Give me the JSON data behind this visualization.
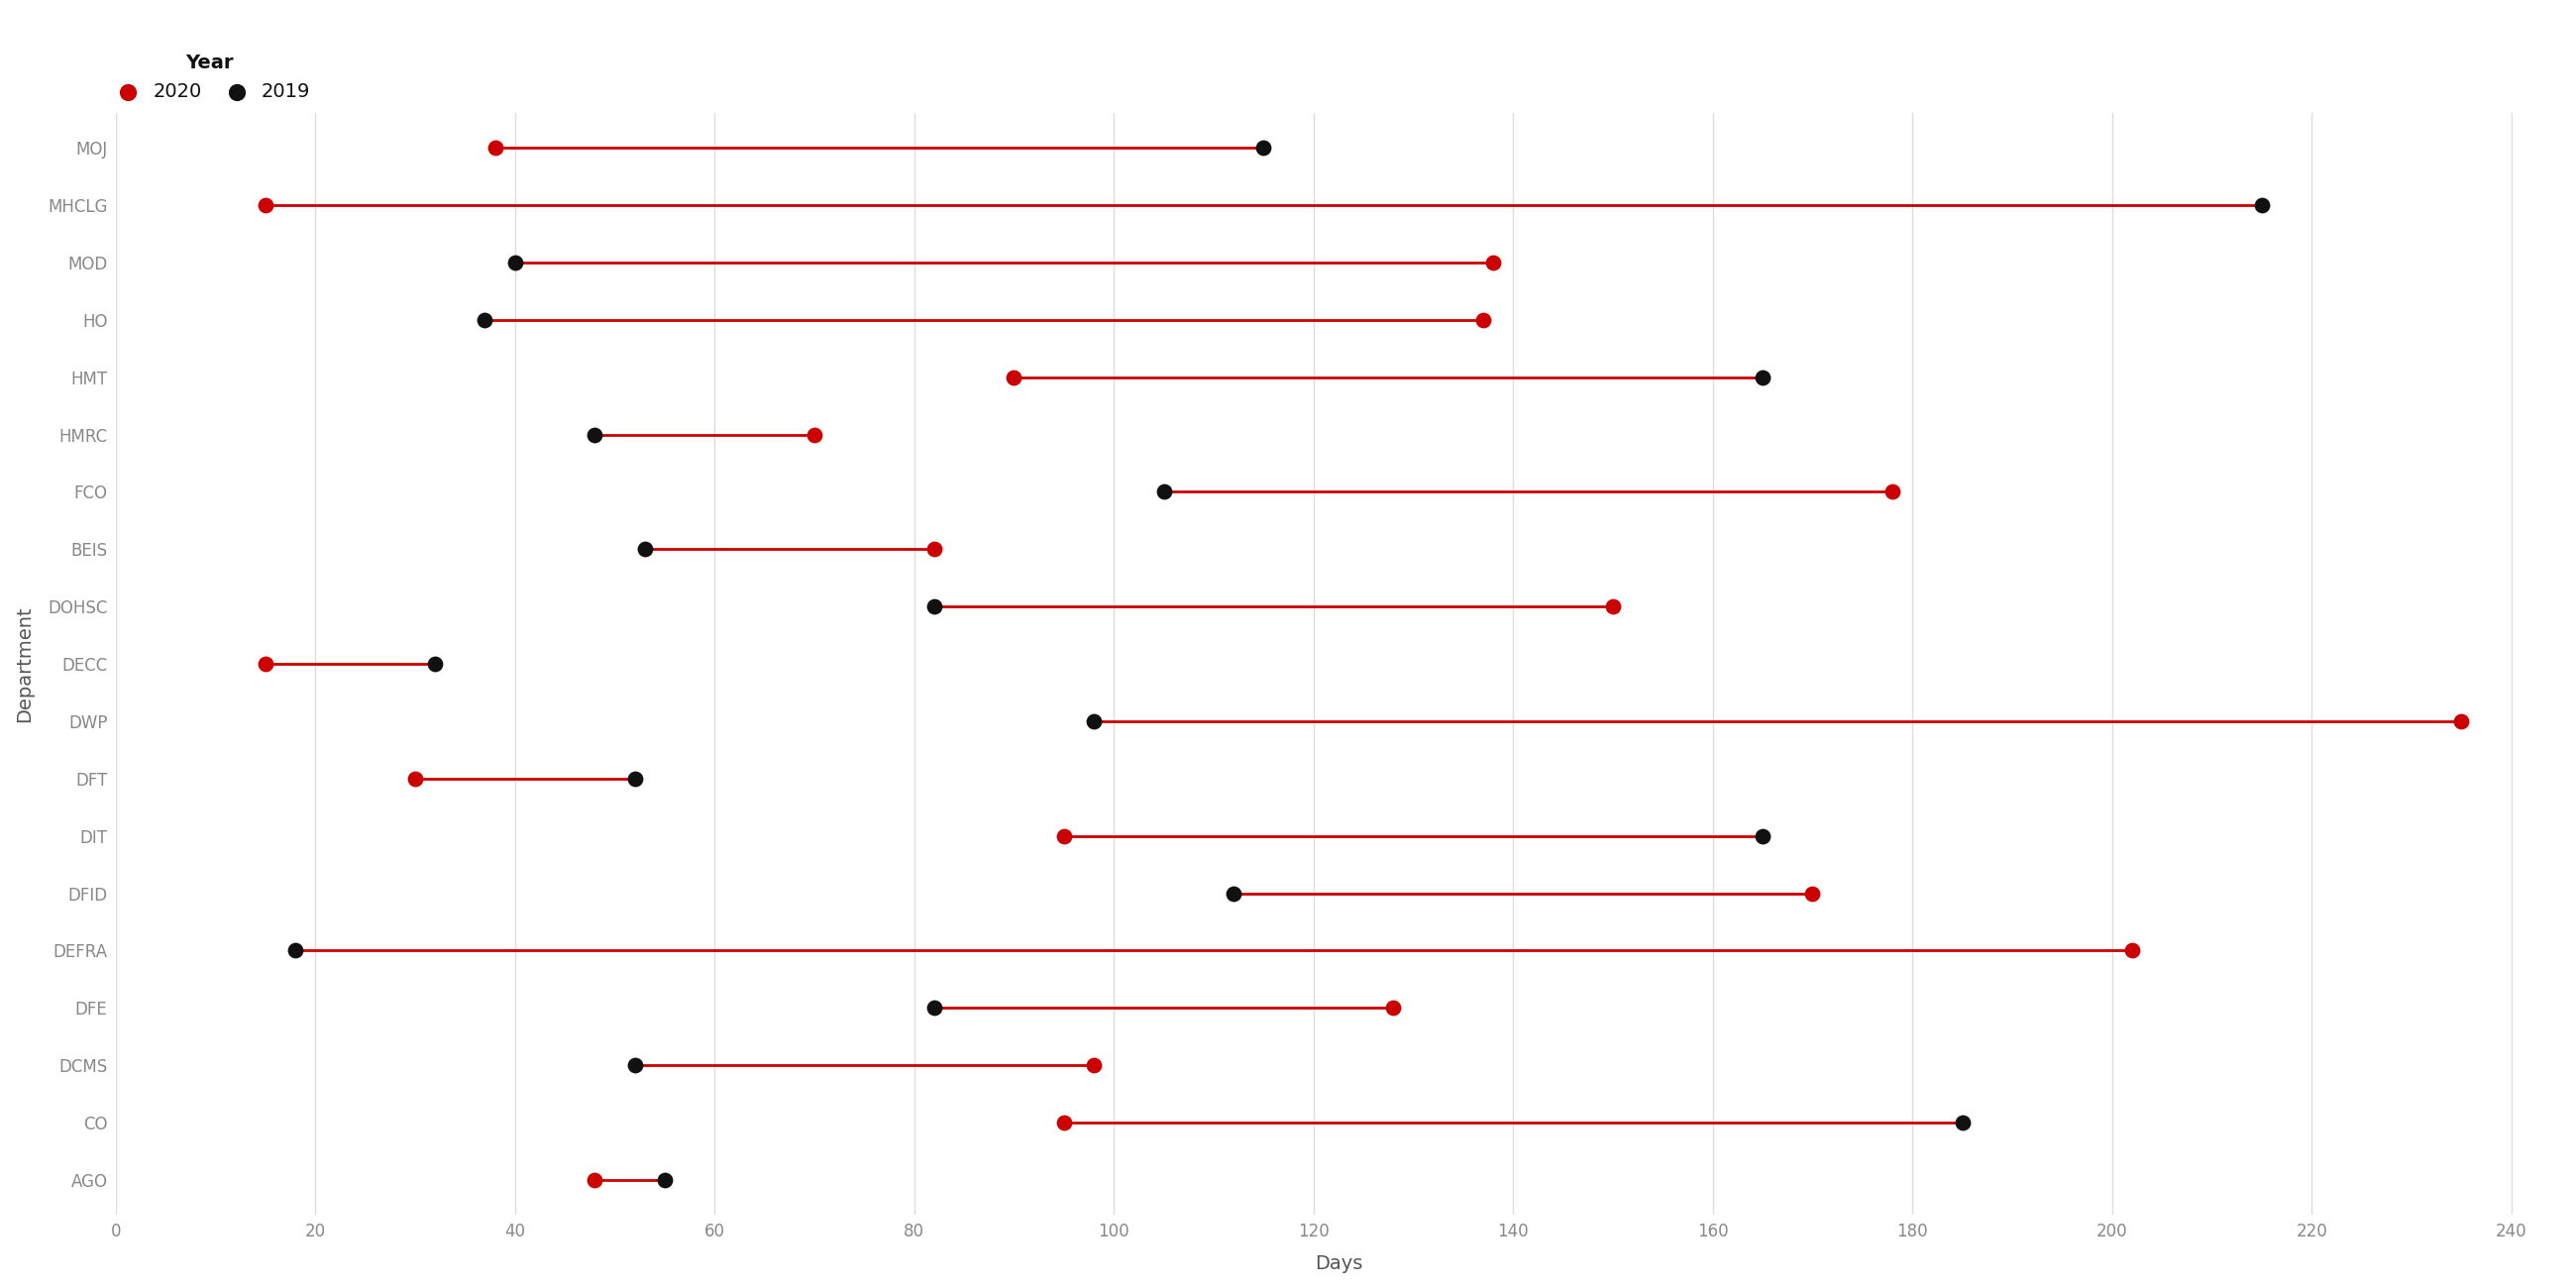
{
  "departments": [
    "MOJ",
    "MHCLG",
    "MOD",
    "HO",
    "HMT",
    "HMRC",
    "FCO",
    "BEIS",
    "DOHSC",
    "DECC",
    "DWP",
    "DFT",
    "DIT",
    "DFID",
    "DEFRA",
    "DFE",
    "DCMS",
    "CO",
    "AGO"
  ],
  "values_2020": [
    38,
    15,
    138,
    137,
    90,
    70,
    178,
    82,
    150,
    15,
    235,
    30,
    95,
    170,
    202,
    128,
    98,
    95,
    48
  ],
  "values_2019": [
    115,
    215,
    40,
    37,
    165,
    48,
    105,
    53,
    82,
    32,
    98,
    52,
    165,
    112,
    18,
    82,
    52,
    185,
    55
  ],
  "color_2020": "#cc0000",
  "color_2019": "#111111",
  "background_color": "#ffffff",
  "xlabel": "Days",
  "ylabel": "Department",
  "legend_title": "Year",
  "xlim": [
    0,
    245
  ],
  "xticks": [
    0,
    20,
    40,
    60,
    80,
    100,
    120,
    140,
    160,
    180,
    200,
    220,
    240
  ],
  "label_fontsize": 14,
  "tick_fontsize": 12,
  "marker_size": 130,
  "line_width": 2.0,
  "grid_color": "#dddddd"
}
